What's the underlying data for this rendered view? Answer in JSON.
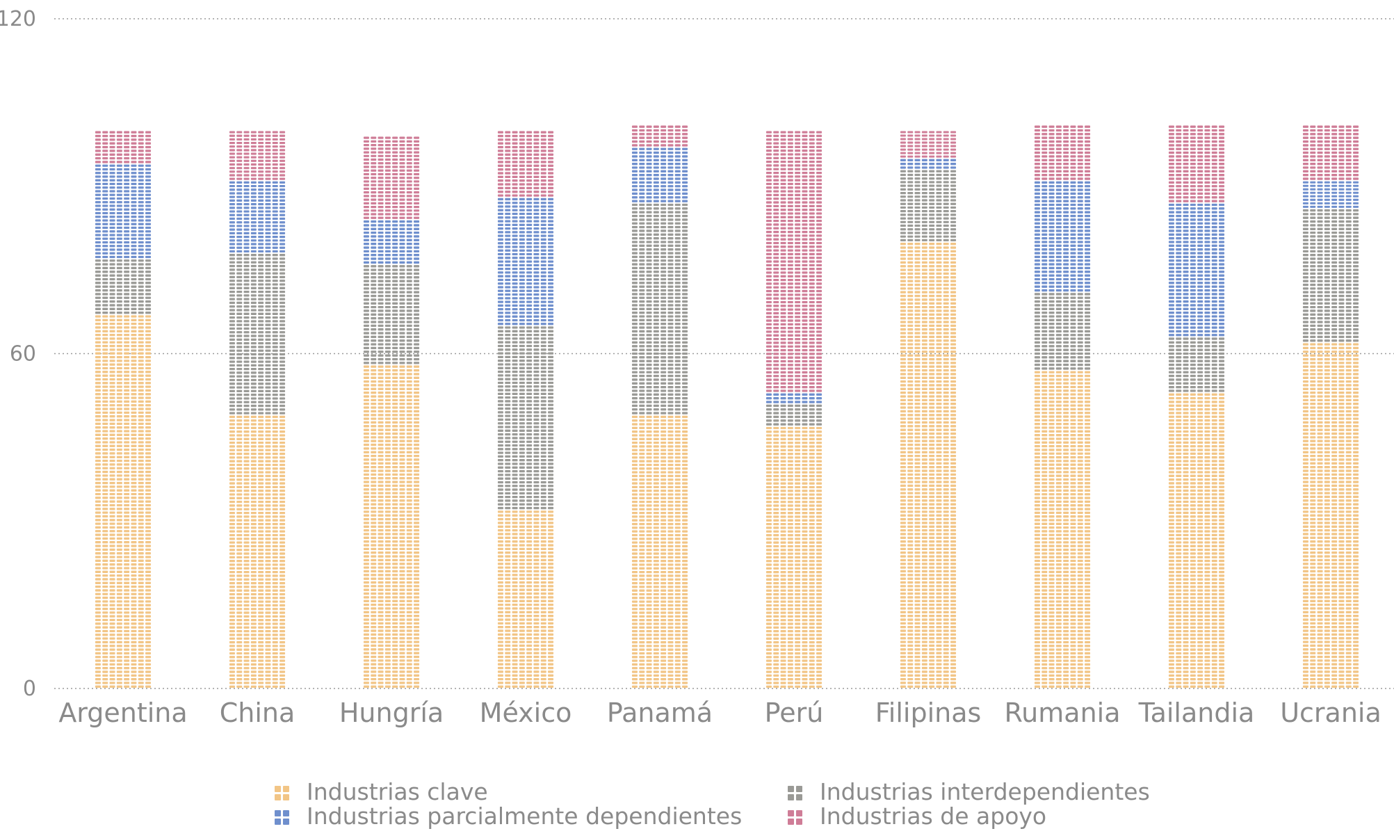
{
  "chart_data": {
    "type": "bar",
    "stacked": true,
    "style": "waffle",
    "categories": [
      "Argentina",
      "China",
      "Hungría",
      "México",
      "Panamá",
      "Perú",
      "Filipinas",
      "Rumania",
      "Tailandia",
      "Ucrania"
    ],
    "series": [
      {
        "name": "Industrias clave",
        "color": "#f2c586",
        "values": [
          67,
          49,
          58,
          32,
          49,
          47,
          80,
          57,
          53,
          62
        ]
      },
      {
        "name": "Industrias interdependientes",
        "color": "#9a9a96",
        "values": [
          10,
          29,
          18,
          33,
          38,
          4,
          13,
          14,
          10,
          24
        ]
      },
      {
        "name": "Industrias parcialmente dependientes",
        "color": "#6f8fcd",
        "values": [
          17,
          13,
          8,
          23,
          10,
          2,
          2,
          20,
          24,
          5
        ]
      },
      {
        "name": "Industrias de apoyo",
        "color": "#cf7d97",
        "values": [
          6,
          9,
          15,
          12,
          4,
          47,
          5,
          10,
          14,
          10
        ]
      }
    ],
    "yticks": [
      0,
      60,
      120
    ],
    "ylim": [
      0,
      120
    ],
    "grid": true,
    "legend_position": "bottom"
  }
}
